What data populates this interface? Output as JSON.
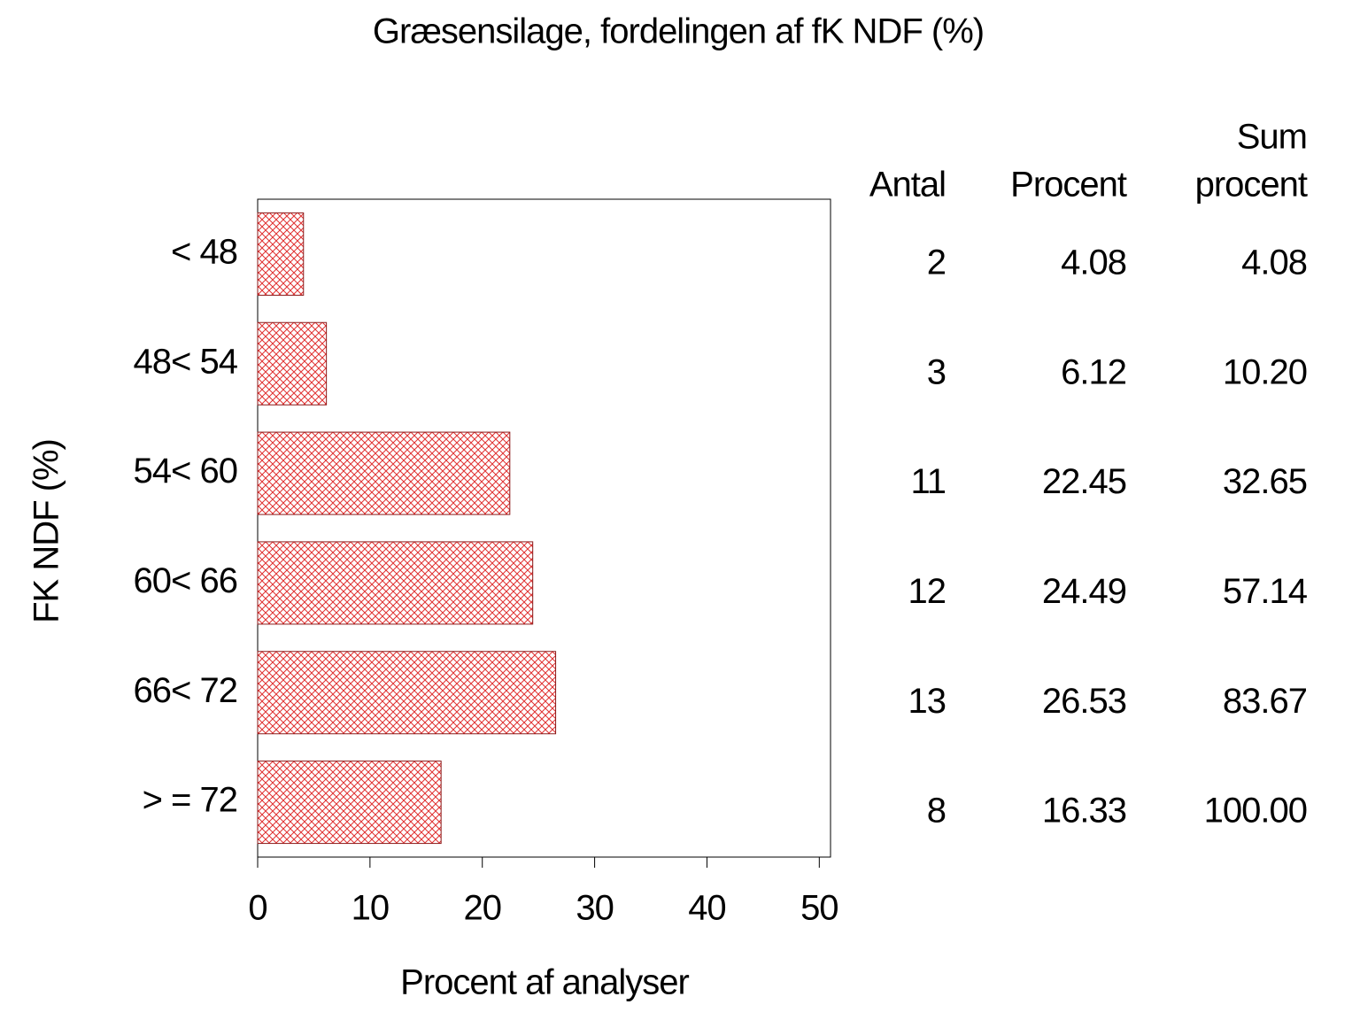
{
  "chart_data": {
    "type": "bar",
    "orientation": "horizontal",
    "title": "Græsensilage, fordelingen af fK NDF (%)",
    "xlabel": "Procent af analyser",
    "ylabel": "FK NDF (%)",
    "categories": [
      "< 48",
      "48< 54",
      "54< 60",
      "60< 66",
      "66< 72",
      "> = 72"
    ],
    "values": [
      4.08,
      6.12,
      22.45,
      24.49,
      26.53,
      16.33
    ],
    "color": "#e03030",
    "xlim": [
      0,
      51
    ],
    "xticks": [
      0,
      10,
      20,
      30,
      40,
      50
    ]
  },
  "table": {
    "headers": [
      [
        "Antal"
      ],
      [
        "Procent"
      ],
      [
        "Sum",
        "procent"
      ]
    ],
    "rows": [
      [
        "2",
        "4.08",
        "4.08"
      ],
      [
        "3",
        "6.12",
        "10.20"
      ],
      [
        "11",
        "22.45",
        "32.65"
      ],
      [
        "12",
        "24.49",
        "57.14"
      ],
      [
        "13",
        "26.53",
        "83.67"
      ],
      [
        "8",
        "16.33",
        "100.00"
      ]
    ]
  }
}
